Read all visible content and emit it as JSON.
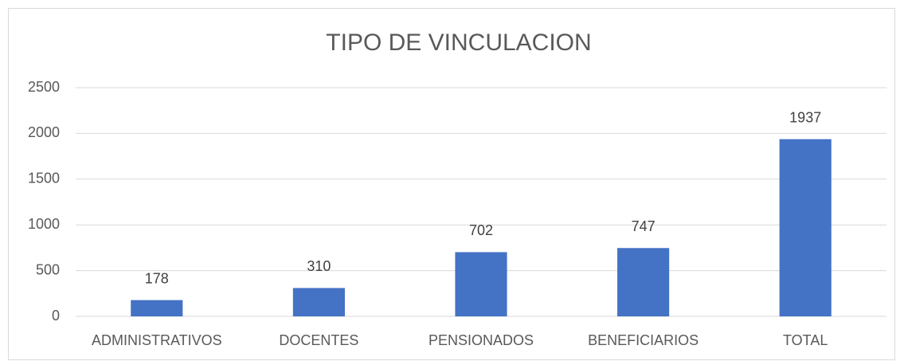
{
  "chart_data": {
    "type": "bar",
    "title": "TIPO DE VINCULACION",
    "categories": [
      "ADMINISTRATIVOS",
      "DOCENTES",
      "PENSIONADOS",
      "BENEFICIARIOS",
      "TOTAL"
    ],
    "values": [
      178,
      310,
      702,
      747,
      1937
    ],
    "color": "#4472c4",
    "ylim": [
      0,
      2500
    ],
    "yticks": [
      0,
      500,
      1000,
      1500,
      2000,
      2500
    ],
    "grid": true,
    "data_labels": true
  }
}
